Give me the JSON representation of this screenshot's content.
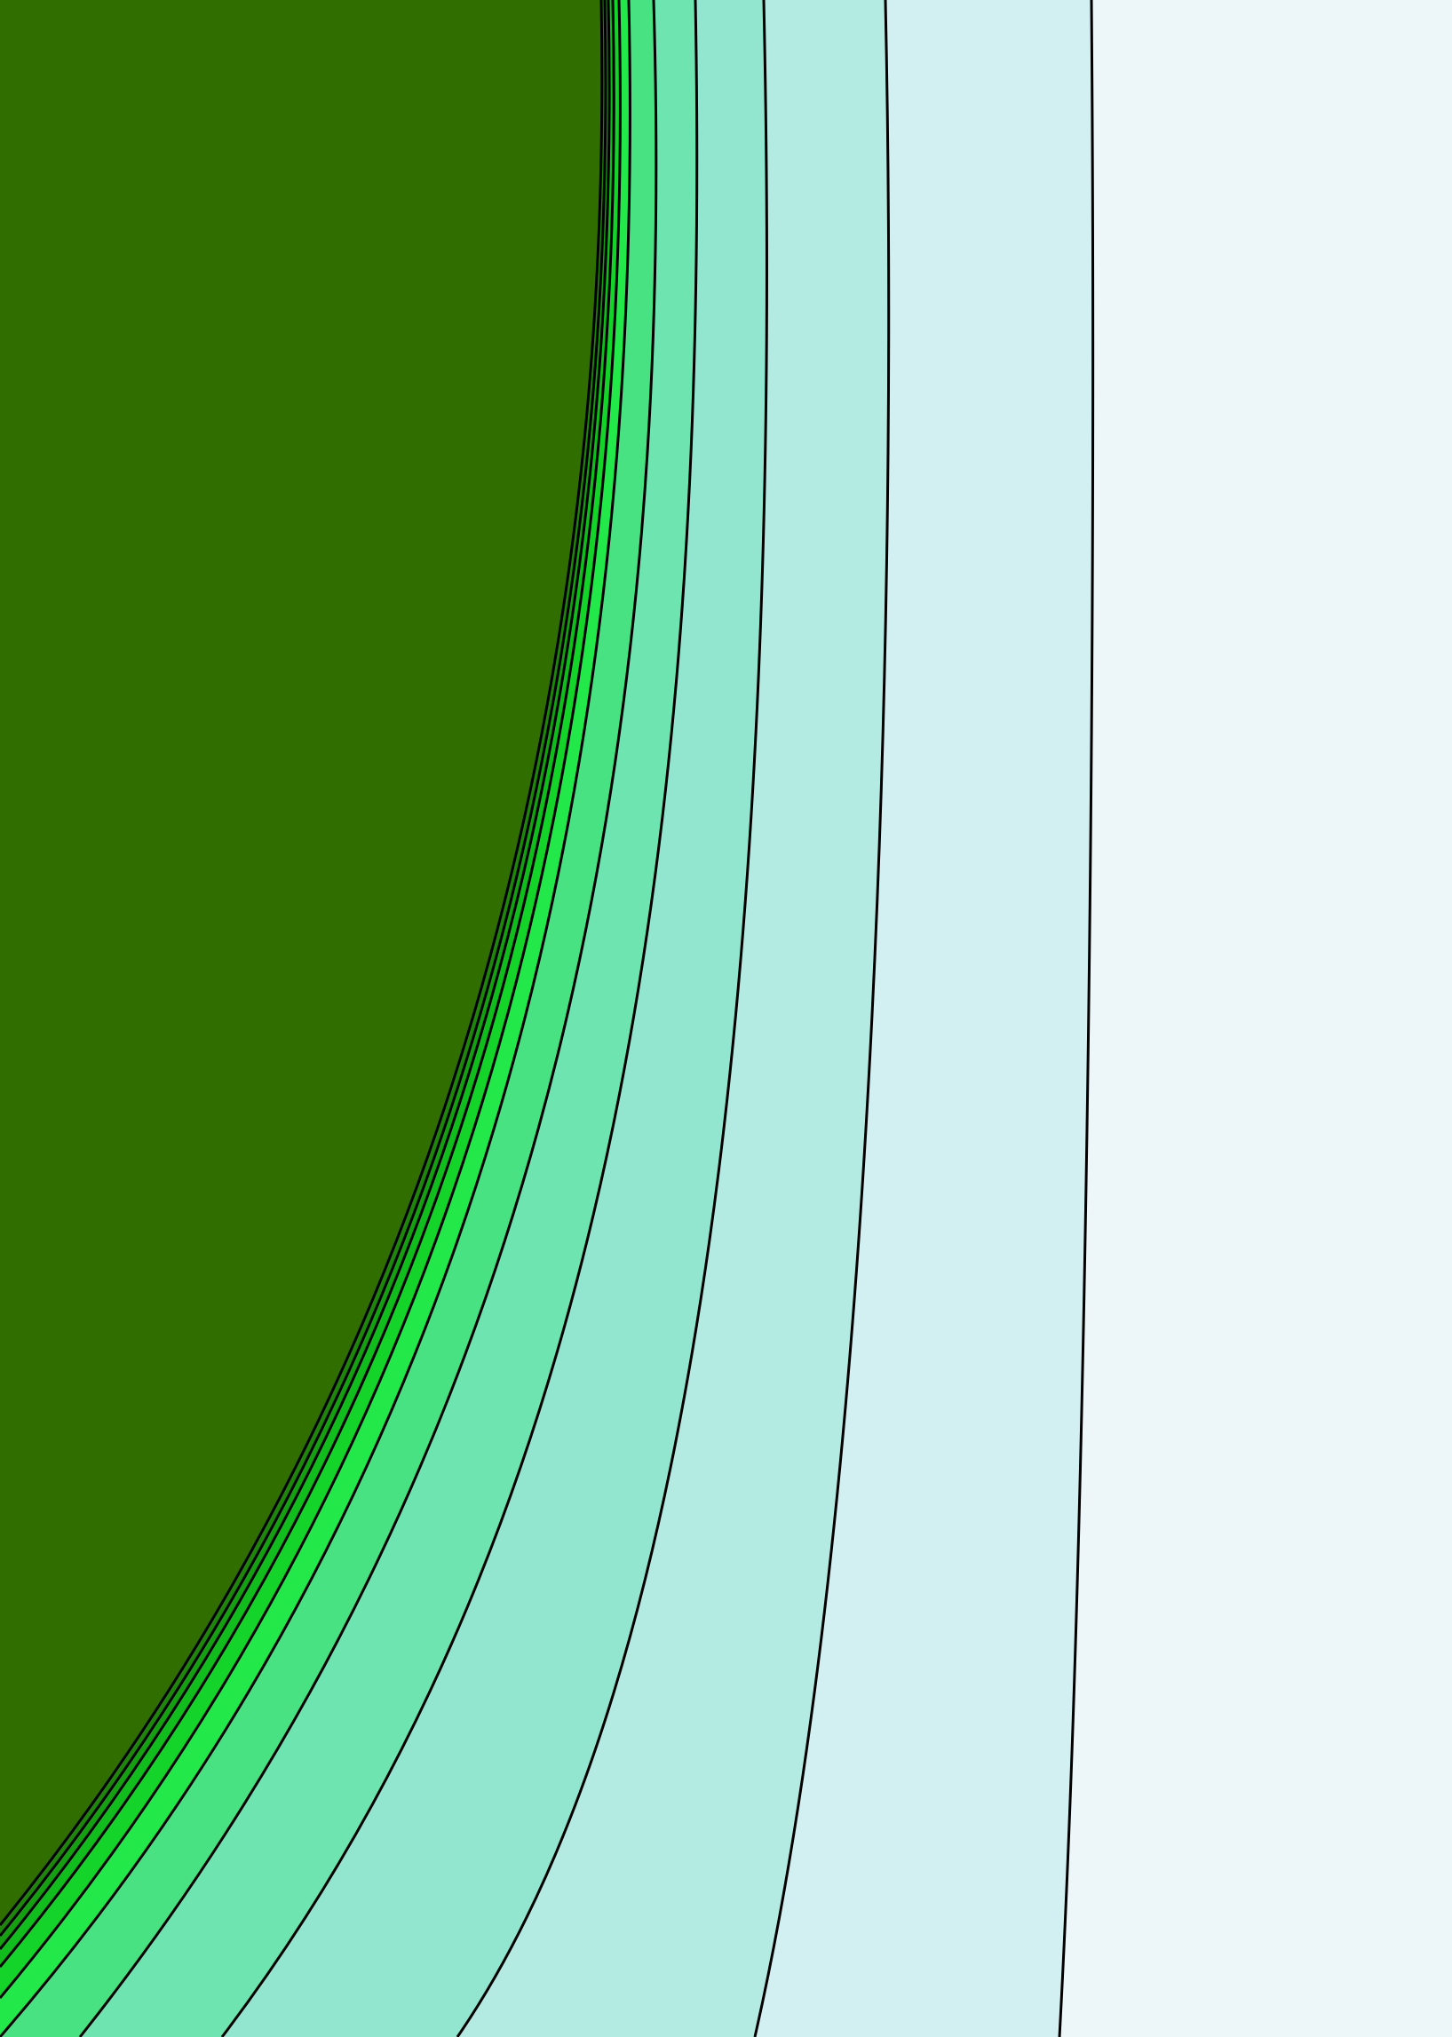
{
  "image": {
    "description": "",
    "background_color": "#edf7fa",
    "outline_color": "#000000",
    "bands": [
      {
        "name": "band-outer-pale",
        "color": "#edf7fa"
      },
      {
        "name": "band-light-cyan",
        "color": "#d2eff1"
      },
      {
        "name": "band-pale-aqua",
        "color": "#b3ebe3"
      },
      {
        "name": "band-aqua",
        "color": "#92e6cf"
      },
      {
        "name": "band-mint",
        "color": "#6ee5b0"
      },
      {
        "name": "band-light-green",
        "color": "#48e282"
      },
      {
        "name": "band-bright-green",
        "color": "#22e84a"
      },
      {
        "name": "band-vivid-green",
        "color": "#14d42a"
      },
      {
        "name": "band-green",
        "color": "#10bd1c"
      },
      {
        "name": "band-deep-green",
        "color": "#15a012"
      },
      {
        "name": "band-darker-green",
        "color": "#1e870b"
      },
      {
        "name": "band-core-dark-green",
        "color": "#316e00"
      }
    ]
  }
}
